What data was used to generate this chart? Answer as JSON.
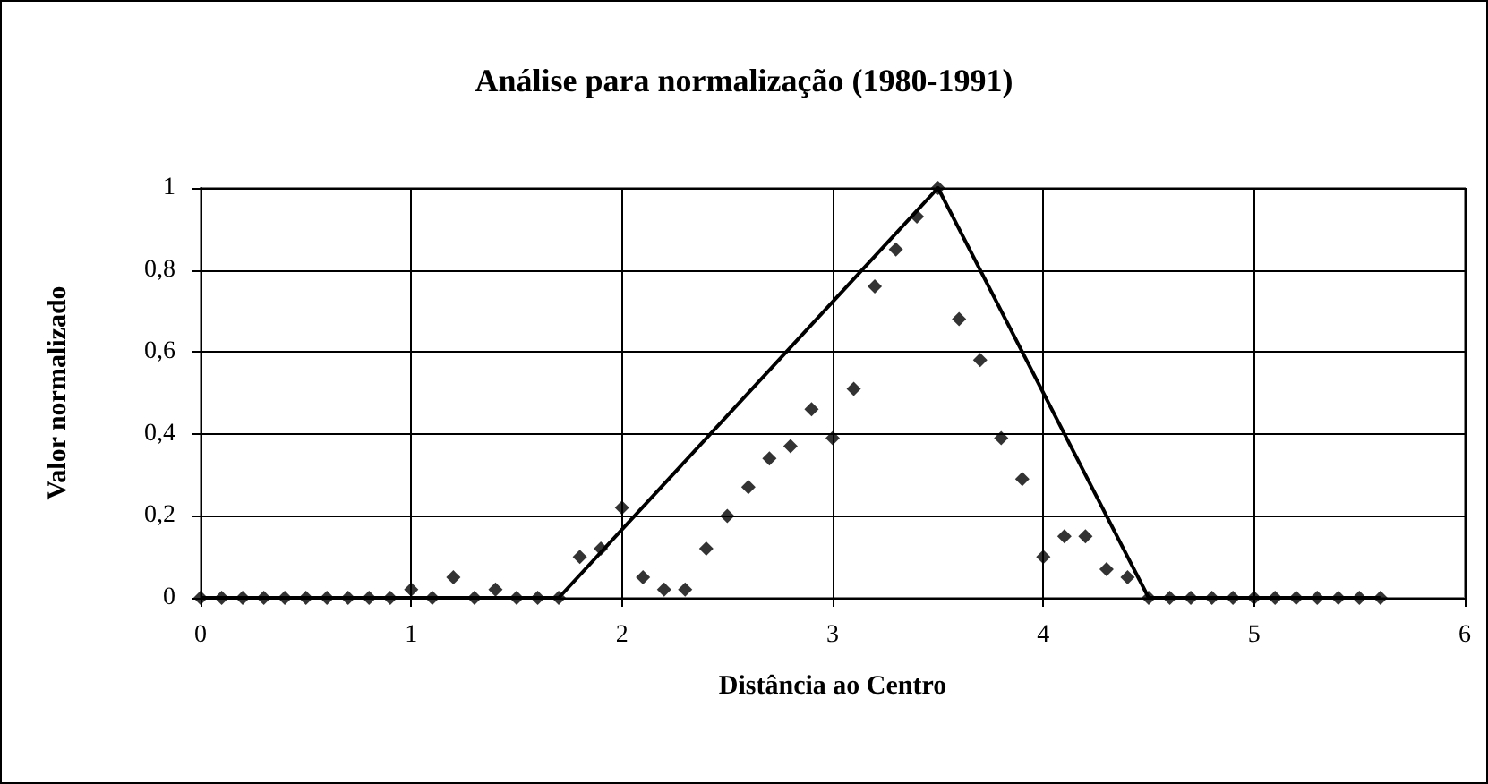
{
  "chart_data": {
    "type": "scatter",
    "title": "Análise para normalização (1980-1991)",
    "xlabel": "Distância ao Centro",
    "ylabel": "Valor normalizado",
    "series": [
      {
        "color": "#000000",
        "marker": "diamond",
        "x": [
          0,
          0.1,
          0.2,
          0.3,
          0.4,
          0.5,
          0.6,
          0.7,
          0.8,
          0.9,
          1.0,
          1.1,
          1.2,
          1.3,
          1.4,
          1.5,
          1.6,
          1.7,
          1.8,
          1.9,
          2.0,
          2.1,
          2.2,
          2.3,
          2.4,
          2.5,
          2.6,
          2.7,
          2.8,
          2.9,
          3.0,
          3.1,
          3.2,
          3.3,
          3.4,
          3.5,
          3.6,
          3.7,
          3.8,
          3.9,
          4.0,
          4.1,
          4.2,
          4.3,
          4.4,
          4.5,
          4.6,
          4.7,
          4.8,
          4.9,
          5.0,
          5.1,
          5.2,
          5.3,
          5.4,
          5.5,
          5.6
        ],
        "values": [
          0,
          0,
          0,
          0,
          0,
          0,
          0,
          0,
          0,
          0,
          0.02,
          0,
          0.05,
          0,
          0.02,
          0,
          0,
          0,
          0.1,
          0.12,
          0.22,
          0.05,
          0.02,
          0.02,
          0.12,
          0.2,
          0.27,
          0.34,
          0.37,
          0.46,
          0.39,
          0.51,
          0.76,
          0.85,
          0.93,
          1.0,
          0.68,
          0.58,
          0.39,
          0.29,
          0.1,
          0.15,
          0.15,
          0.07,
          0.05,
          0,
          0,
          0,
          0,
          0,
          0,
          0,
          0,
          0,
          0,
          0,
          0
        ]
      },
      {
        "type": "line",
        "color": "#000000",
        "marker": "none",
        "line_style": "solid",
        "x": [
          0,
          1.7,
          3.5,
          4.5,
          5.6
        ],
        "values": [
          0,
          0,
          1,
          0,
          0
        ]
      }
    ],
    "xlim": [
      0,
      6
    ],
    "xticks": [
      0,
      1,
      2,
      3,
      4,
      5,
      6
    ],
    "ylim": [
      0,
      1
    ],
    "yticks": [
      0,
      {
        "value": 0.2,
        "label": "0,2"
      },
      {
        "value": 0.4,
        "label": "0,4"
      },
      {
        "value": 0.6,
        "label": "0,6"
      },
      {
        "value": 0.8,
        "label": "0,8"
      },
      1
    ],
    "grid": true
  }
}
